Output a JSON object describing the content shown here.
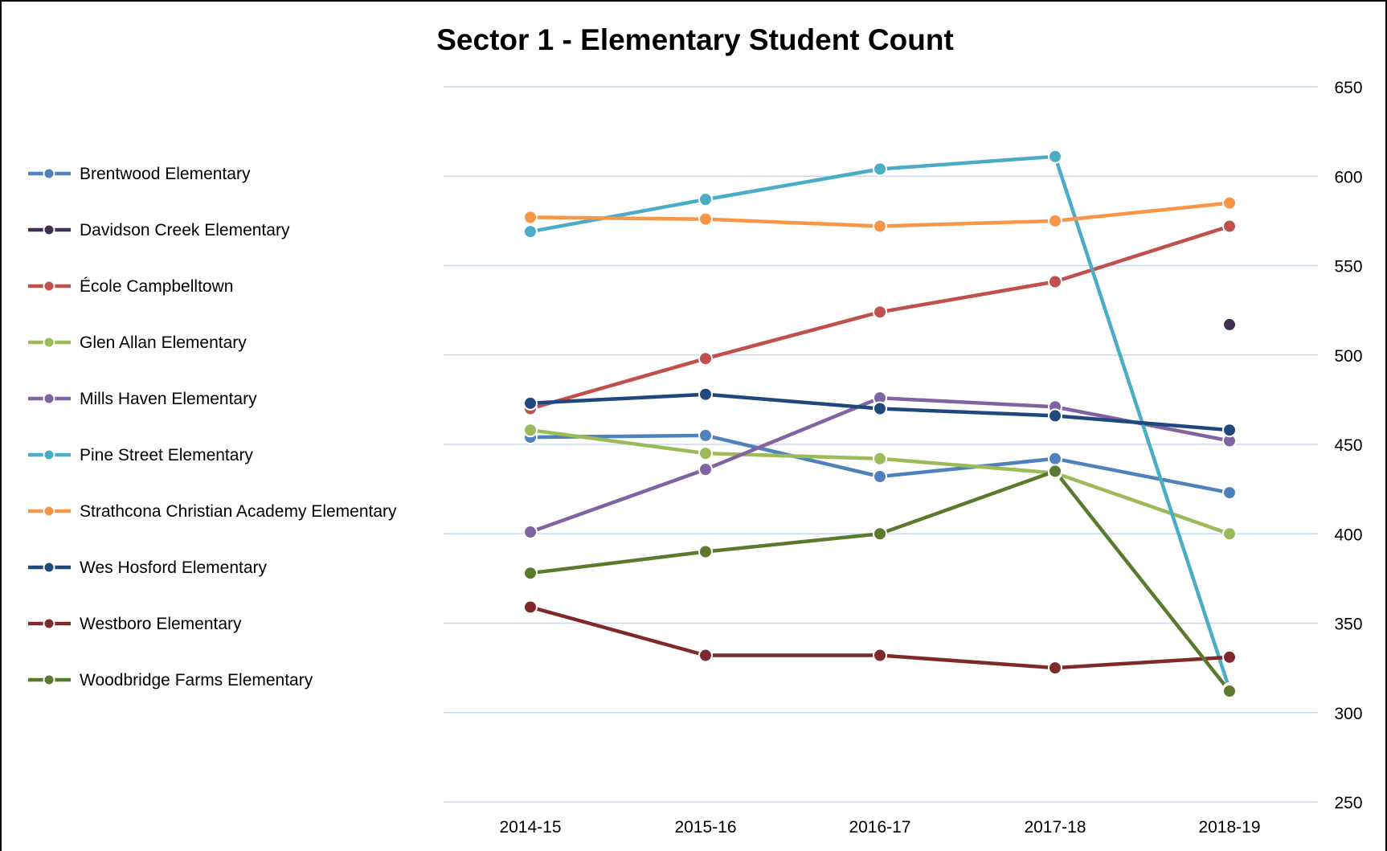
{
  "chart_data": {
    "type": "line",
    "title": "Sector 1 - Elementary Student Count",
    "xlabel": "",
    "ylabel": "",
    "categories": [
      "2014-15",
      "2015-16",
      "2016-17",
      "2017-18",
      "2018-19"
    ],
    "ylim": [
      250,
      650
    ],
    "yticks": [
      250,
      300,
      350,
      400,
      450,
      500,
      550,
      600,
      650
    ],
    "y_axis_position": "right",
    "grid": true,
    "legend_position": "left",
    "series": [
      {
        "name": "Brentwood Elementary",
        "color": "#4F81BD",
        "values": [
          454,
          455,
          432,
          442,
          423
        ]
      },
      {
        "name": "Davidson Creek Elementary",
        "color": "#403152",
        "values": [
          null,
          null,
          null,
          null,
          517
        ]
      },
      {
        "name": "École Campbelltown",
        "color": "#C0504D",
        "values": [
          470,
          498,
          524,
          541,
          572
        ]
      },
      {
        "name": "Glen Allan Elementary",
        "color": "#9BBB59",
        "values": [
          458,
          445,
          442,
          434,
          400
        ]
      },
      {
        "name": "Mills Haven Elementary",
        "color": "#8064A2",
        "values": [
          401,
          436,
          476,
          471,
          452
        ]
      },
      {
        "name": "Pine Street Elementary",
        "color": "#4BACC6",
        "values": [
          569,
          587,
          604,
          611,
          313
        ]
      },
      {
        "name": "Strathcona Christian Academy Elementary",
        "color": "#F79646",
        "values": [
          577,
          576,
          572,
          575,
          585
        ]
      },
      {
        "name": "Wes Hosford Elementary",
        "color": "#1F497D",
        "values": [
          473,
          478,
          470,
          466,
          458
        ]
      },
      {
        "name": "Westboro Elementary",
        "color": "#7F2A2A",
        "values": [
          359,
          332,
          332,
          325,
          331
        ]
      },
      {
        "name": "Woodbridge Farms Elementary",
        "color": "#5A7A2E",
        "values": [
          378,
          390,
          400,
          435,
          312
        ]
      }
    ]
  }
}
